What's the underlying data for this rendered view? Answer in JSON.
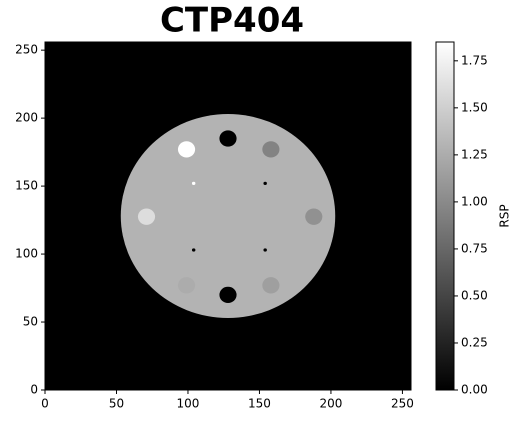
{
  "chart_data": {
    "type": "image",
    "title": "CTP404",
    "cmap": "gray",
    "xlim": [
      0,
      256
    ],
    "ylim": [
      0,
      256
    ],
    "xticks": [
      0,
      50,
      100,
      150,
      200,
      250
    ],
    "yticks": [
      0,
      50,
      100,
      150,
      200,
      250
    ],
    "background": 0,
    "regions": [
      {
        "x": 128,
        "y": 128,
        "r": 75,
        "value": 1.3
      },
      {
        "x": 128,
        "y": 185,
        "r": 6,
        "value": 0
      },
      {
        "x": 128,
        "y": 70,
        "r": 6,
        "value": 0
      },
      {
        "x": 99,
        "y": 177,
        "r": 6,
        "value": 1.85
      },
      {
        "x": 158,
        "y": 177,
        "r": 6,
        "value": 0.95
      },
      {
        "x": 71,
        "y": 127.5,
        "r": 6,
        "value": 1.6
      },
      {
        "x": 188,
        "y": 127.5,
        "r": 6,
        "value": 1.05
      },
      {
        "x": 99,
        "y": 77,
        "r": 6,
        "value": 1.25
      },
      {
        "x": 158,
        "y": 77,
        "r": 6,
        "value": 1.15
      },
      {
        "x": 104,
        "y": 152,
        "r": 1.2,
        "value": 1.85
      },
      {
        "x": 154,
        "y": 152,
        "r": 1.2,
        "value": 0
      },
      {
        "x": 104,
        "y": 103,
        "r": 1.2,
        "value": 0
      },
      {
        "x": 154,
        "y": 103,
        "r": 1.2,
        "value": 0
      }
    ],
    "colorbar": {
      "label": "RSP",
      "clim": [
        0,
        1.85
      ],
      "ticks": [
        {
          "value": 0,
          "label": "0.00"
        },
        {
          "value": 0.25,
          "label": "0.25"
        },
        {
          "value": 0.5,
          "label": "0.50"
        },
        {
          "value": 0.75,
          "label": "0.75"
        },
        {
          "value": 1,
          "label": "1.00"
        },
        {
          "value": 1.25,
          "label": "1.25"
        },
        {
          "value": 1.5,
          "label": "1.50"
        },
        {
          "value": 1.75,
          "label": "1.75"
        }
      ]
    }
  }
}
